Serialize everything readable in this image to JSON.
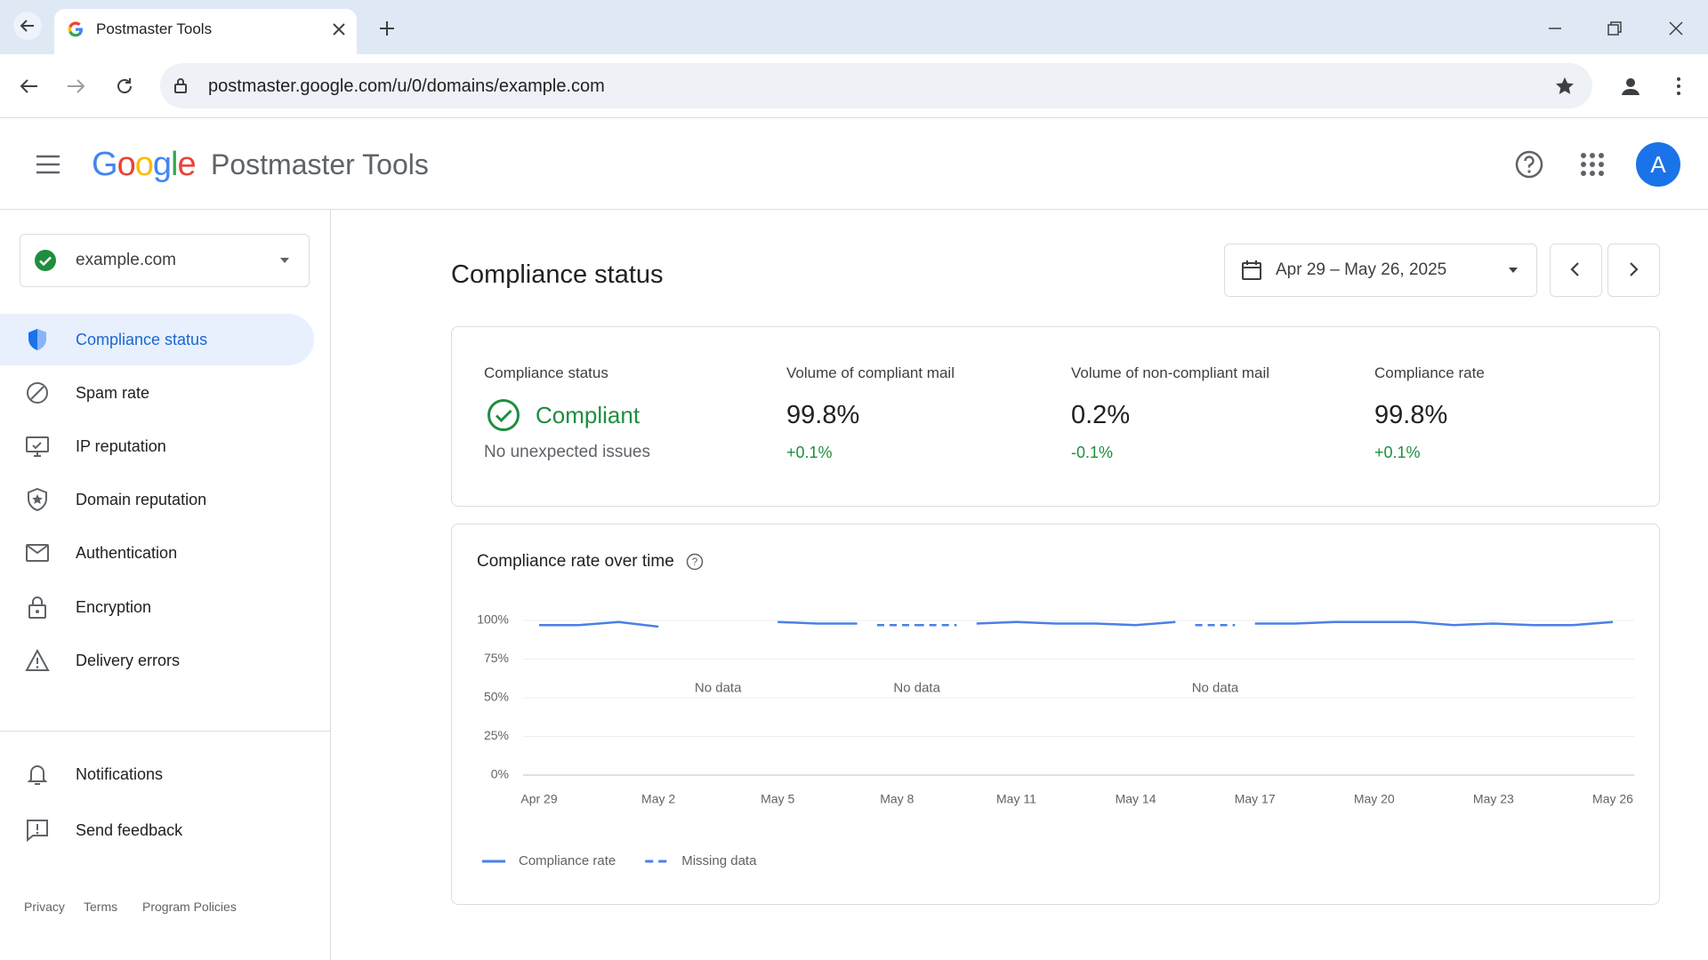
{
  "browser": {
    "tab_title": "Postmaster Tools",
    "url": "postmaster.google.com/u/0/domains/example.com"
  },
  "header": {
    "logo": "Google",
    "product": "Postmaster Tools",
    "avatar": "A"
  },
  "sidebar": {
    "domain": "example.com",
    "nav": [
      "Compliance status",
      "Spam rate",
      "IP reputation",
      "Domain reputation",
      "Authentication",
      "Encryption",
      "Delivery errors"
    ],
    "secondary": [
      "Notifications",
      "Send feedback"
    ],
    "footer": [
      "Privacy",
      "Terms",
      "Program Policies"
    ]
  },
  "main": {
    "title": "Compliance status",
    "date_range": "Apr 29 – May 26, 2025",
    "summary": [
      {
        "label": "Compliance status",
        "value": "Compliant",
        "note": "No unexpected issues"
      },
      {
        "label": "Volume of compliant mail",
        "value": "99.8%",
        "change": "+0.1%"
      },
      {
        "label": "Volume of non-compliant mail",
        "value": "0.2%",
        "change": "-0.1%"
      },
      {
        "label": "Compliance rate",
        "value": "99.8%",
        "change": "+0.1%"
      }
    ]
  },
  "chart_data": {
    "type": "line",
    "title": "Compliance rate over time",
    "categories": [
      "Apr 29",
      null,
      null,
      "May 2",
      null,
      null,
      "May 5",
      null,
      null,
      "May 8",
      null,
      null,
      "May 11",
      null,
      null,
      "May 14",
      null,
      null,
      "May 17",
      null,
      null,
      "May 20",
      null,
      null,
      "May 23",
      null,
      null,
      "May 26"
    ],
    "series": [
      {
        "name": "Compliance rate",
        "color": "#4a80e8",
        "style": "solid",
        "values": [
          97,
          97,
          99,
          96,
          null,
          null,
          99,
          98,
          98,
          null,
          null,
          98,
          99,
          98,
          98,
          97,
          99,
          null,
          98,
          98,
          99,
          99,
          99,
          97,
          98,
          97,
          97,
          99
        ]
      },
      {
        "name": "Missing data",
        "color": "#4a80e8",
        "style": "dashed",
        "values": [
          null,
          null,
          null,
          null,
          null,
          null,
          null,
          null,
          null,
          97,
          97,
          null,
          null,
          null,
          null,
          null,
          null,
          97,
          null,
          null,
          null,
          null,
          null,
          null,
          null,
          null,
          null,
          null
        ]
      }
    ],
    "annotations": [
      "No data",
      "No data",
      "No data"
    ],
    "ylim": [
      0,
      100
    ],
    "yticks": [
      {
        "value": 0,
        "label": "0%"
      },
      {
        "value": 25,
        "label": "25%"
      },
      {
        "value": 50,
        "label": "50%"
      },
      {
        "value": 75,
        "label": "75%"
      },
      {
        "value": 100,
        "label": "100%"
      }
    ],
    "grid": true
  }
}
